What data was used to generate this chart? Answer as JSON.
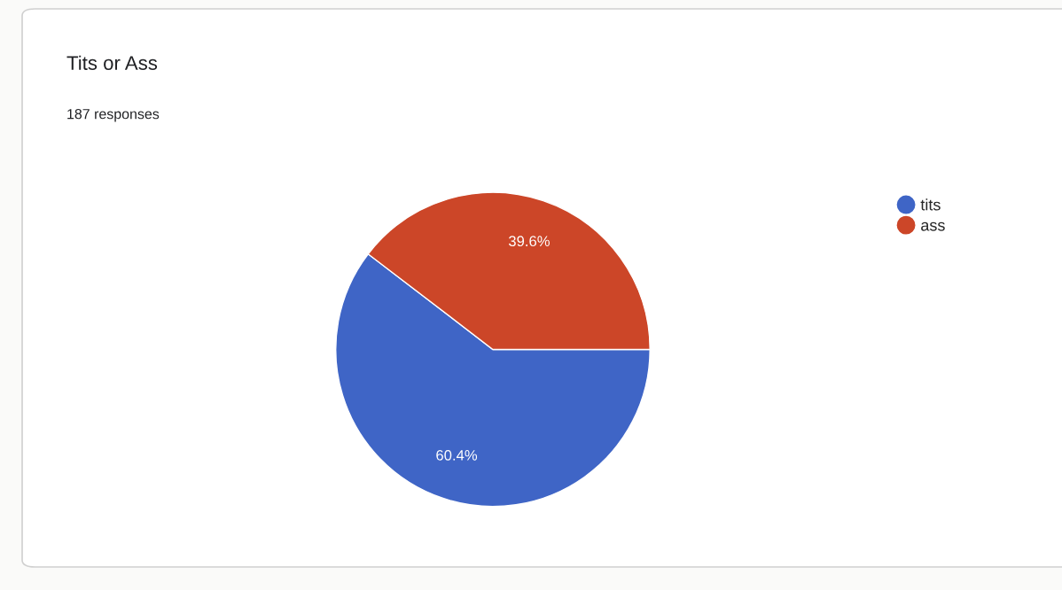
{
  "chart_data": {
    "type": "pie",
    "title": "Tits or Ass",
    "subtitle": "187 responses",
    "categories": [
      "tits",
      "ass"
    ],
    "values": [
      60.4,
      39.6
    ],
    "colors": [
      "#3f65c6",
      "#cc4628"
    ],
    "value_labels": [
      "60.4%",
      "39.6%"
    ],
    "legend": "top right"
  }
}
